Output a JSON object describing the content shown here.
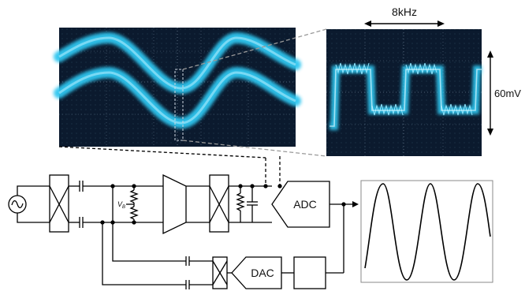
{
  "scope_zoom": {
    "frequency_label": "8kHz",
    "amplitude_label": "60mV"
  },
  "circuit": {
    "adc_label": "ADC",
    "dac_label": "DAC",
    "bias_label": "V",
    "bias_subscript": "B"
  },
  "colors": {
    "scope_background": "#0b1a2e",
    "trace": "#2ec6f0",
    "trace_core": "#b9f1ff",
    "grid": "#6b7f95",
    "wire": "#000000"
  }
}
